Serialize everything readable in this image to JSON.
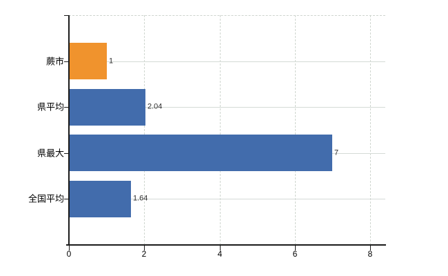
{
  "chart_data": {
    "type": "bar",
    "orientation": "horizontal",
    "title": "",
    "categories": [
      "蕨市",
      "県平均",
      "県最大",
      "全国平均"
    ],
    "values": [
      1,
      2.04,
      7,
      1.64
    ],
    "value_labels": [
      "1",
      "2.04",
      "7",
      "1.64"
    ],
    "series": [
      {
        "name": "",
        "values": [
          1,
          2.04,
          7,
          1.64
        ]
      }
    ],
    "bar_colors": [
      "#f0932d",
      "#426cac",
      "#426cac",
      "#426cac"
    ],
    "x_ticks": [
      0,
      2,
      4,
      6,
      8
    ],
    "x_tick_labels": [
      "0",
      "2",
      "4",
      "6",
      "8"
    ],
    "xlim": [
      0,
      8.4
    ],
    "grid": true,
    "legend": "none",
    "colors": {
      "highlight_bar": "#f0932d",
      "default_bar": "#426cac",
      "gridline": "#d4dad6",
      "axis": "#1a1a1a",
      "value_label_text": "#2e2e2e",
      "tick_label_text": "#000000",
      "background": "#ffffff"
    }
  }
}
